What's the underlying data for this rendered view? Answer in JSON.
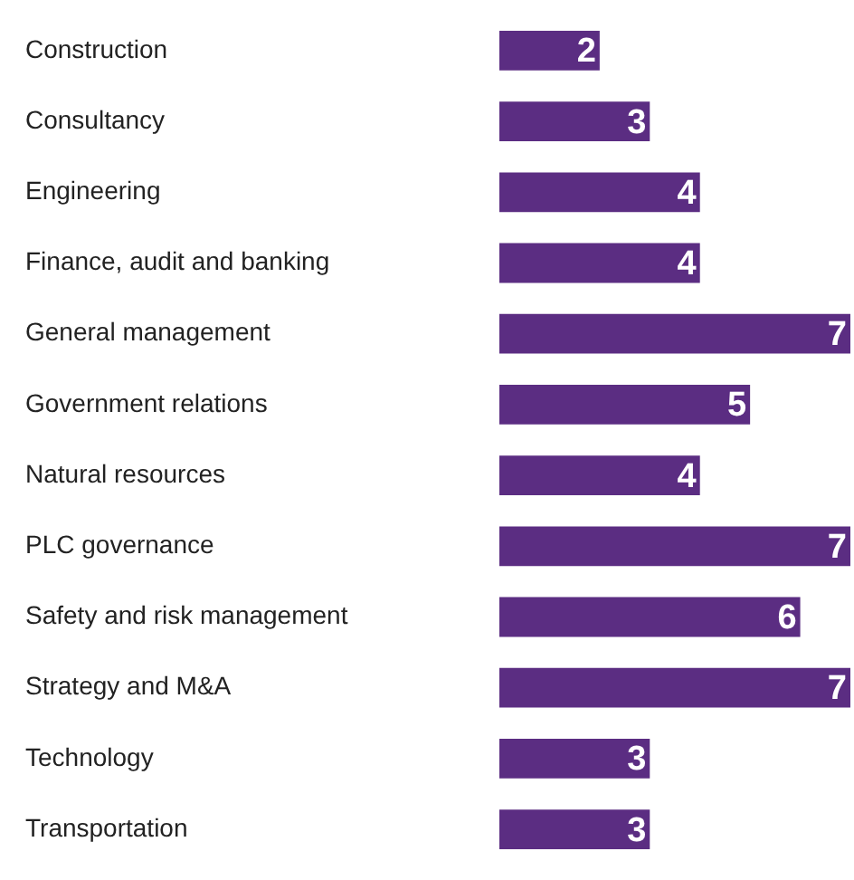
{
  "chart_data": {
    "type": "bar",
    "orientation": "horizontal",
    "data_labels": true,
    "legend": false,
    "color": "#5b2d82",
    "categories": [
      "Construction",
      "Consultancy",
      "Engineering",
      "Finance, audit and banking",
      "General management",
      "Government relations",
      "Natural resources",
      "PLC governance",
      "Safety and risk management",
      "Strategy and M&A",
      "Technology",
      "Transportation"
    ],
    "values": [
      2,
      3,
      4,
      4,
      7,
      5,
      4,
      7,
      6,
      7,
      3,
      3
    ]
  }
}
